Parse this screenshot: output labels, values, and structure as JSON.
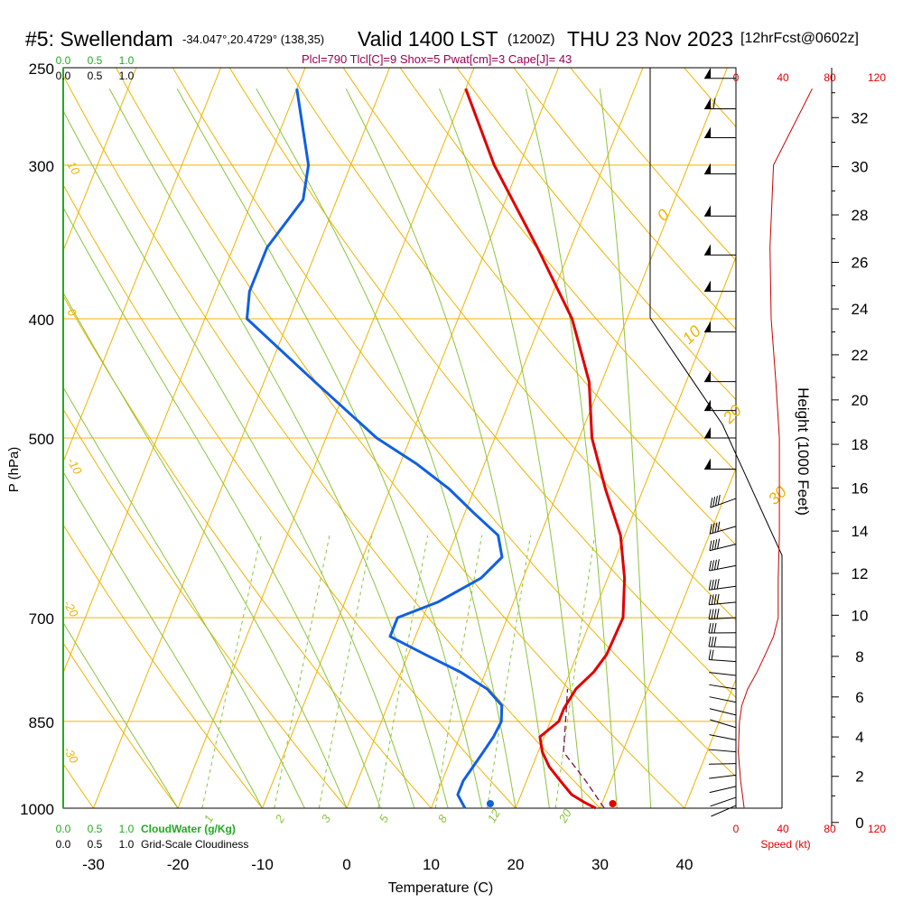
{
  "header": {
    "station": "#5: Swellendam",
    "coords": "-34.047°,20.4729° (138,35)",
    "valid": "Valid 1400 LST",
    "utc": "(1200Z)",
    "date": "THU 23 Nov 2023",
    "forecast": "[12hrFcst@0602z]",
    "indices": "Plcl=790 Tlcl[C]=9 Shox=5 Pwat[cm]=3 Cape[J]= 43"
  },
  "chart_data": {
    "type": "line",
    "title": "#5: Swellendam",
    "xlabel": "Temperature (C)",
    "ylabel": "P (hPa)",
    "y2label": "Height (1000 Feet)",
    "x_ticks": [
      "-30",
      "-20",
      "-10",
      "0",
      "10",
      "20",
      "30",
      "40"
    ],
    "pressure_ticks": [
      "250",
      "300",
      "400",
      "500",
      "700",
      "850",
      "1000"
    ],
    "height_ticks": [
      "0",
      "2",
      "4",
      "6",
      "8",
      "10",
      "12",
      "14",
      "16",
      "18",
      "20",
      "22",
      "24",
      "26",
      "28",
      "30",
      "32"
    ],
    "speed_ticks": [
      "0",
      "40",
      "80",
      "120"
    ],
    "speed_label": "Speed (kt)",
    "cloud_scale": [
      "0.0",
      "0.5",
      "1.0"
    ],
    "cloud_water_label": "CloudWater (g/Kg)",
    "cloudiness_label": "Grid-Scale Cloudiness",
    "isotherm_labels": [
      "0",
      "10",
      "20",
      "30"
    ],
    "theta_labels": [
      "10",
      "0",
      "-10",
      "-20",
      "-30"
    ],
    "mixing_ratio_labels": [
      "1",
      "2",
      "3",
      "5",
      "8",
      "12",
      "20"
    ],
    "series": [
      {
        "name": "temperature",
        "color": "#e00000",
        "points": [
          [
            1000,
            29.5
          ],
          [
            990,
            28
          ],
          [
            975,
            26
          ],
          [
            950,
            24
          ],
          [
            925,
            22
          ],
          [
            900,
            20.5
          ],
          [
            875,
            19.5
          ],
          [
            850,
            21
          ],
          [
            830,
            21
          ],
          [
            800,
            21.5
          ],
          [
            775,
            22.8
          ],
          [
            750,
            23.5
          ],
          [
            700,
            23.7
          ],
          [
            650,
            22
          ],
          [
            600,
            19.5
          ],
          [
            550,
            15.5
          ],
          [
            500,
            11.5
          ],
          [
            450,
            8.5
          ],
          [
            400,
            3.5
          ],
          [
            350,
            -4
          ],
          [
            300,
            -13
          ],
          [
            260,
            -20
          ]
        ]
      },
      {
        "name": "dewpoint",
        "color": "#1060e0",
        "points": [
          [
            1000,
            14
          ],
          [
            975,
            12.5
          ],
          [
            950,
            12.5
          ],
          [
            925,
            13
          ],
          [
            900,
            13.5
          ],
          [
            875,
            14
          ],
          [
            850,
            14.2
          ],
          [
            825,
            13.5
          ],
          [
            800,
            11
          ],
          [
            775,
            7
          ],
          [
            750,
            2
          ],
          [
            725,
            -3
          ],
          [
            700,
            -3
          ],
          [
            680,
            1
          ],
          [
            650,
            5
          ],
          [
            625,
            6.5
          ],
          [
            600,
            5
          ],
          [
            575,
            1
          ],
          [
            550,
            -3
          ],
          [
            525,
            -8
          ],
          [
            500,
            -14
          ],
          [
            450,
            -24
          ],
          [
            400,
            -35
          ],
          [
            380,
            -36
          ],
          [
            350,
            -36
          ],
          [
            320,
            -34
          ],
          [
            300,
            -35
          ],
          [
            260,
            -40
          ]
        ]
      },
      {
        "name": "parcel",
        "color": "#7a1040",
        "points": [
          [
            1000,
            30.5
          ],
          [
            950,
            27
          ],
          [
            900,
            23
          ],
          [
            850,
            21.8
          ],
          [
            800,
            20.5
          ]
        ]
      }
    ],
    "surface_temperature": 31.5,
    "surface_dewpoint": 17,
    "wind_speed_profile_kt": [
      [
        1000,
        7
      ],
      [
        950,
        4
      ],
      [
        900,
        2
      ],
      [
        850,
        3
      ],
      [
        825,
        5
      ],
      [
        800,
        10
      ],
      [
        775,
        18
      ],
      [
        750,
        25
      ],
      [
        725,
        32
      ],
      [
        700,
        36
      ],
      [
        650,
        36
      ],
      [
        600,
        37
      ],
      [
        550,
        37
      ],
      [
        500,
        37
      ],
      [
        450,
        34
      ],
      [
        400,
        30
      ],
      [
        350,
        29
      ],
      [
        300,
        32
      ],
      [
        260,
        65
      ]
    ],
    "wind_barb_pressures": [
      255,
      270,
      285,
      305,
      330,
      355,
      380,
      410,
      450,
      475,
      500,
      530,
      560,
      590,
      610,
      635,
      660,
      680,
      700,
      720,
      740,
      760,
      780,
      800,
      820,
      840,
      860,
      880,
      900,
      920,
      940,
      960,
      980,
      995
    ],
    "p_range": [
      1000,
      250
    ],
    "x_range": [
      -35,
      48
    ],
    "speed_range": [
      0,
      120
    ],
    "height_range_kft": [
      0,
      33
    ]
  }
}
